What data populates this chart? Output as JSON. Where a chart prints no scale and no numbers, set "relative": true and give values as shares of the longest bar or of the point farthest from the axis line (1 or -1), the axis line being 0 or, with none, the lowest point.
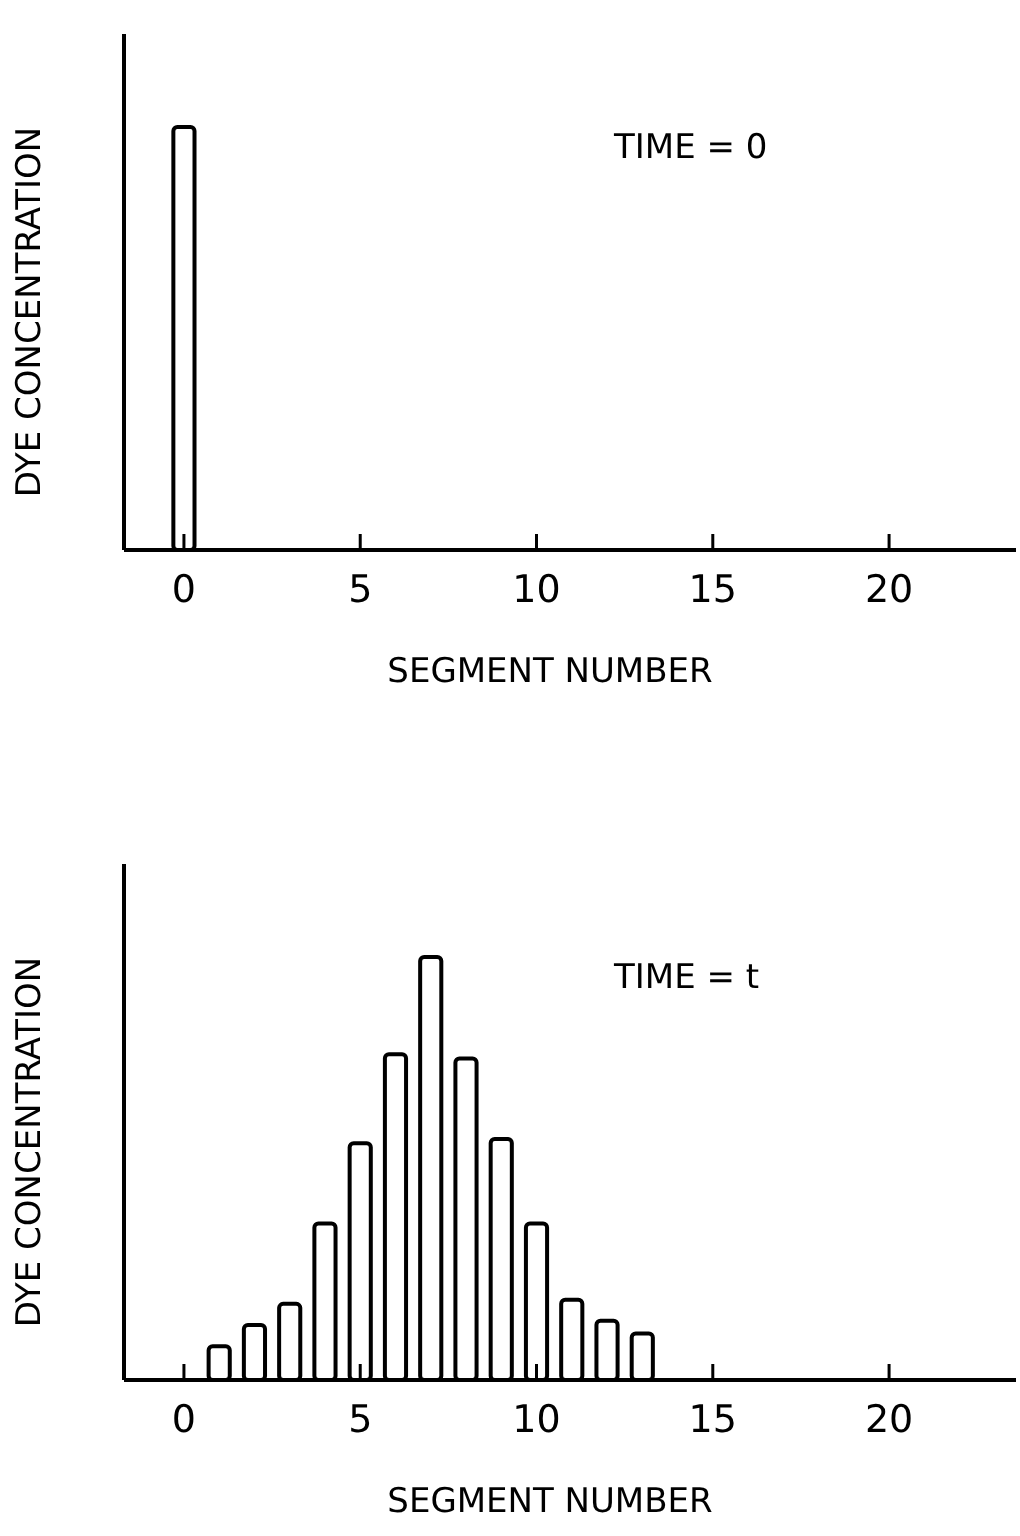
{
  "chart_data": [
    {
      "type": "bar",
      "relative": true,
      "x": [
        0
      ],
      "values": [
        1
      ],
      "color": "#000000",
      "xlim": [
        -1.7,
        23.6
      ],
      "xticks": [
        0,
        5,
        10,
        15,
        20
      ],
      "xlabel": "SEGMENT NUMBER",
      "ylabel": "DYE CONCENTRATION",
      "annotations": [
        "TIME = 0"
      ]
    },
    {
      "type": "bar",
      "relative": true,
      "x": [
        1,
        2,
        3,
        4,
        5,
        6,
        7,
        8,
        9,
        10,
        11,
        12,
        13
      ],
      "values": [
        0.08,
        0.13,
        0.18,
        0.37,
        0.56,
        0.77,
        1,
        0.76,
        0.57,
        0.37,
        0.19,
        0.14,
        0.11
      ],
      "color": "#000000",
      "xlim": [
        -1.7,
        23.6
      ],
      "xticks": [
        0,
        5,
        10,
        15,
        20
      ],
      "xlabel": "SEGMENT NUMBER",
      "ylabel": "DYE CONCENTRATION",
      "annotations": [
        "TIME = t"
      ]
    }
  ]
}
